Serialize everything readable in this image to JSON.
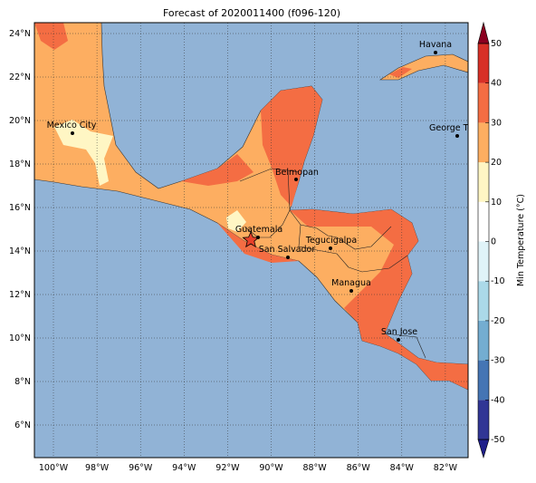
{
  "title": "Forecast of 2020011400 (f096-120)",
  "map": {
    "lat_ticks": [
      {
        "value": 6,
        "label": "6°N"
      },
      {
        "value": 8,
        "label": "8°N"
      },
      {
        "value": 10,
        "label": "10°N"
      },
      {
        "value": 12,
        "label": "12°N"
      },
      {
        "value": 14,
        "label": "14°N"
      },
      {
        "value": 16,
        "label": "16°N"
      },
      {
        "value": 18,
        "label": "18°N"
      },
      {
        "value": 20,
        "label": "20°N"
      },
      {
        "value": 22,
        "label": "22°N"
      },
      {
        "value": 24,
        "label": "24°N"
      }
    ],
    "lon_ticks": [
      {
        "value": -100,
        "label": "100°W"
      },
      {
        "value": -98,
        "label": "98°W"
      },
      {
        "value": -96,
        "label": "96°W"
      },
      {
        "value": -94,
        "label": "94°W"
      },
      {
        "value": -92,
        "label": "92°W"
      },
      {
        "value": -90,
        "label": "90°W"
      },
      {
        "value": -88,
        "label": "88°W"
      },
      {
        "value": -86,
        "label": "86°W"
      },
      {
        "value": -84,
        "label": "84°W"
      },
      {
        "value": -82,
        "label": "82°W"
      }
    ],
    "cities": [
      "Havana",
      "Mexico City",
      "George Tov",
      "Belmopan",
      "Guatemala",
      "San Salvador",
      "Tegucigalpa",
      "Managua",
      "San Jose"
    ]
  },
  "colorbar": {
    "label": "Min Temperature (°C)",
    "ticks": [
      -50,
      -40,
      -30,
      -20,
      -10,
      0,
      10,
      20,
      30,
      40,
      50
    ],
    "colors": [
      "#313695",
      "#4575b4",
      "#74add1",
      "#abd9e9",
      "#e0f3f8",
      "#ffffff",
      "#fff6c4",
      "#fdae61",
      "#f46d43",
      "#d73027"
    ],
    "extend_colors": [
      "#1f1f8a",
      "#8b0020"
    ]
  }
}
